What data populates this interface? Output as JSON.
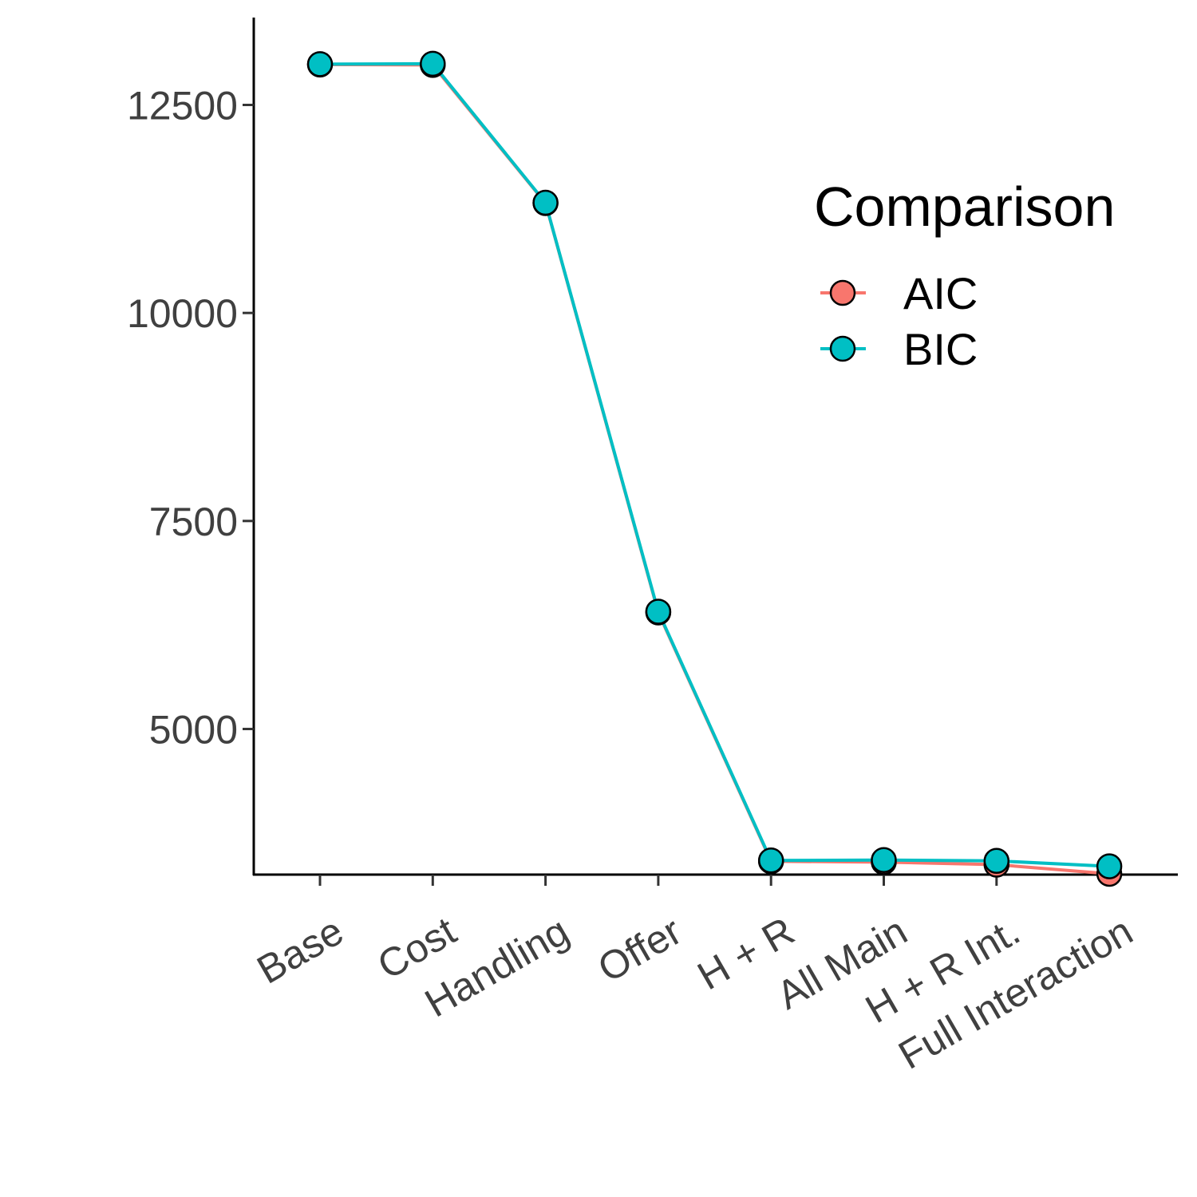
{
  "chart_data": {
    "type": "line",
    "title": "",
    "xlabel": "",
    "ylabel": "",
    "categories": [
      "Base",
      "Cost",
      "Handling",
      "Offer",
      "H + R",
      "All Main",
      "H + R Int.",
      "Full Interaction"
    ],
    "series": [
      {
        "name": "AIC",
        "color": "#F8766D",
        "values": [
          12985,
          12980,
          11320,
          6400,
          3410,
          3400,
          3370,
          3260
        ]
      },
      {
        "name": "BIC",
        "color": "#00BFC4",
        "values": [
          12990,
          12995,
          11325,
          6410,
          3420,
          3425,
          3415,
          3350
        ]
      }
    ],
    "ylim": [
      3250,
      13550
    ],
    "yticks": [
      5000,
      7500,
      10000,
      12500
    ],
    "ytick_labels": [
      "5000",
      "7500",
      "10000",
      "12500"
    ],
    "x_tick_rotation": -30,
    "grid": false,
    "legend": {
      "title": "Comparison",
      "position": "right",
      "entries": [
        "AIC",
        "BIC"
      ]
    }
  }
}
